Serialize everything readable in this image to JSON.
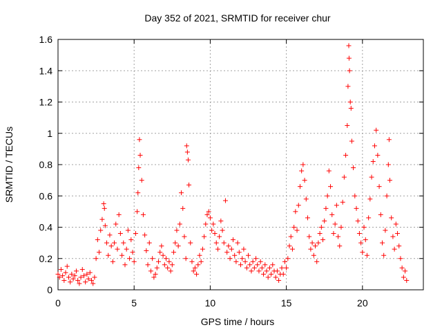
{
  "chart_data": {
    "type": "scatter",
    "title": "Day 352 of 2021, SRMTID for receiver chur",
    "xlabel": "GPS time / hours",
    "ylabel": "SRMTID / TECUs",
    "xlim": [
      0,
      24
    ],
    "ylim": [
      0,
      1.6
    ],
    "x_ticks": [
      0,
      5,
      10,
      15,
      20
    ],
    "x_tick_labels": [
      "0",
      "5",
      "10",
      "15",
      "20"
    ],
    "y_ticks": [
      0,
      0.2,
      0.4,
      0.6,
      0.8,
      1.0,
      1.2,
      1.4,
      1.6
    ],
    "y_tick_labels": [
      "0",
      "0.2",
      "0.4",
      "0.6",
      "0.8",
      "1",
      "1.2",
      "1.4",
      "1.6"
    ],
    "grid": true,
    "marker": "plus",
    "marker_color": "#ff0000",
    "series": [
      {
        "name": "SRMTID",
        "points": [
          [
            0.0,
            0.1
          ],
          [
            0.1,
            0.08
          ],
          [
            0.2,
            0.13
          ],
          [
            0.3,
            0.09
          ],
          [
            0.4,
            0.06
          ],
          [
            0.5,
            0.11
          ],
          [
            0.6,
            0.15
          ],
          [
            0.7,
            0.08
          ],
          [
            0.8,
            0.05
          ],
          [
            0.9,
            0.1
          ],
          [
            1.0,
            0.07
          ],
          [
            1.1,
            0.09
          ],
          [
            1.2,
            0.12
          ],
          [
            1.3,
            0.06
          ],
          [
            1.4,
            0.04
          ],
          [
            1.5,
            0.08
          ],
          [
            1.6,
            0.13
          ],
          [
            1.7,
            0.09
          ],
          [
            1.8,
            0.05
          ],
          [
            1.9,
            0.1
          ],
          [
            2.0,
            0.07
          ],
          [
            2.1,
            0.11
          ],
          [
            2.2,
            0.06
          ],
          [
            2.3,
            0.04
          ],
          [
            2.4,
            0.08
          ],
          [
            2.5,
            0.2
          ],
          [
            2.6,
            0.32
          ],
          [
            2.7,
            0.24
          ],
          [
            2.8,
            0.38
          ],
          [
            2.9,
            0.45
          ],
          [
            3.0,
            0.55
          ],
          [
            3.05,
            0.52
          ],
          [
            3.1,
            0.41
          ],
          [
            3.2,
            0.3
          ],
          [
            3.3,
            0.22
          ],
          [
            3.4,
            0.35
          ],
          [
            3.5,
            0.28
          ],
          [
            3.6,
            0.18
          ],
          [
            3.7,
            0.3
          ],
          [
            3.8,
            0.42
          ],
          [
            3.9,
            0.26
          ],
          [
            4.0,
            0.48
          ],
          [
            4.1,
            0.36
          ],
          [
            4.2,
            0.22
          ],
          [
            4.3,
            0.3
          ],
          [
            4.4,
            0.16
          ],
          [
            4.5,
            0.26
          ],
          [
            4.6,
            0.38
          ],
          [
            4.7,
            0.2
          ],
          [
            4.8,
            0.32
          ],
          [
            4.9,
            0.24
          ],
          [
            5.0,
            0.18
          ],
          [
            5.1,
            0.36
          ],
          [
            5.2,
            0.5
          ],
          [
            5.25,
            0.62
          ],
          [
            5.3,
            0.78
          ],
          [
            5.35,
            0.96
          ],
          [
            5.4,
            0.86
          ],
          [
            5.5,
            0.7
          ],
          [
            5.6,
            0.48
          ],
          [
            5.7,
            0.35
          ],
          [
            5.8,
            0.25
          ],
          [
            5.9,
            0.16
          ],
          [
            6.0,
            0.3
          ],
          [
            6.1,
            0.12
          ],
          [
            6.2,
            0.2
          ],
          [
            6.3,
            0.08
          ],
          [
            6.4,
            0.1
          ],
          [
            6.5,
            0.14
          ],
          [
            6.6,
            0.18
          ],
          [
            6.7,
            0.24
          ],
          [
            6.8,
            0.28
          ],
          [
            6.9,
            0.22
          ],
          [
            7.0,
            0.16
          ],
          [
            7.1,
            0.2
          ],
          [
            7.2,
            0.14
          ],
          [
            7.3,
            0.18
          ],
          [
            7.4,
            0.12
          ],
          [
            7.5,
            0.16
          ],
          [
            7.6,
            0.24
          ],
          [
            7.7,
            0.3
          ],
          [
            7.8,
            0.38
          ],
          [
            7.9,
            0.28
          ],
          [
            8.0,
            0.42
          ],
          [
            8.1,
            0.62
          ],
          [
            8.2,
            0.52
          ],
          [
            8.3,
            0.34
          ],
          [
            8.4,
            0.2
          ],
          [
            8.45,
            0.92
          ],
          [
            8.5,
            0.88
          ],
          [
            8.55,
            0.83
          ],
          [
            8.6,
            0.67
          ],
          [
            8.7,
            0.3
          ],
          [
            8.8,
            0.18
          ],
          [
            8.9,
            0.12
          ],
          [
            9.0,
            0.14
          ],
          [
            9.1,
            0.1
          ],
          [
            9.2,
            0.16
          ],
          [
            9.3,
            0.22
          ],
          [
            9.4,
            0.18
          ],
          [
            9.5,
            0.26
          ],
          [
            9.6,
            0.34
          ],
          [
            9.7,
            0.42
          ],
          [
            9.8,
            0.48
          ],
          [
            9.9,
            0.5
          ],
          [
            10.0,
            0.46
          ],
          [
            10.1,
            0.38
          ],
          [
            10.2,
            0.42
          ],
          [
            10.3,
            0.36
          ],
          [
            10.4,
            0.3
          ],
          [
            10.5,
            0.26
          ],
          [
            10.6,
            0.34
          ],
          [
            10.7,
            0.44
          ],
          [
            10.8,
            0.38
          ],
          [
            10.9,
            0.3
          ],
          [
            11.0,
            0.57
          ],
          [
            11.1,
            0.24
          ],
          [
            11.2,
            0.28
          ],
          [
            11.3,
            0.2
          ],
          [
            11.4,
            0.26
          ],
          [
            11.5,
            0.32
          ],
          [
            11.6,
            0.22
          ],
          [
            11.7,
            0.18
          ],
          [
            11.8,
            0.3
          ],
          [
            11.9,
            0.24
          ],
          [
            12.0,
            0.16
          ],
          [
            12.1,
            0.2
          ],
          [
            12.2,
            0.26
          ],
          [
            12.3,
            0.18
          ],
          [
            12.4,
            0.14
          ],
          [
            12.5,
            0.22
          ],
          [
            12.6,
            0.16
          ],
          [
            12.7,
            0.12
          ],
          [
            12.8,
            0.18
          ],
          [
            12.9,
            0.14
          ],
          [
            13.0,
            0.2
          ],
          [
            13.1,
            0.16
          ],
          [
            13.2,
            0.12
          ],
          [
            13.3,
            0.18
          ],
          [
            13.4,
            0.14
          ],
          [
            13.5,
            0.1
          ],
          [
            13.6,
            0.16
          ],
          [
            13.7,
            0.12
          ],
          [
            13.8,
            0.08
          ],
          [
            13.9,
            0.14
          ],
          [
            14.0,
            0.1
          ],
          [
            14.1,
            0.16
          ],
          [
            14.2,
            0.12
          ],
          [
            14.3,
            0.08
          ],
          [
            14.4,
            0.12
          ],
          [
            14.5,
            0.06
          ],
          [
            14.6,
            0.1
          ],
          [
            14.7,
            0.14
          ],
          [
            14.8,
            0.1
          ],
          [
            14.9,
            0.18
          ],
          [
            15.0,
            0.14
          ],
          [
            15.1,
            0.2
          ],
          [
            15.2,
            0.28
          ],
          [
            15.3,
            0.34
          ],
          [
            15.4,
            0.26
          ],
          [
            15.5,
            0.4
          ],
          [
            15.6,
            0.5
          ],
          [
            15.7,
            0.38
          ],
          [
            15.8,
            0.54
          ],
          [
            15.9,
            0.66
          ],
          [
            16.0,
            0.76
          ],
          [
            16.1,
            0.8
          ],
          [
            16.2,
            0.7
          ],
          [
            16.3,
            0.58
          ],
          [
            16.4,
            0.46
          ],
          [
            16.5,
            0.34
          ],
          [
            16.6,
            0.26
          ],
          [
            16.7,
            0.3
          ],
          [
            16.8,
            0.22
          ],
          [
            16.9,
            0.28
          ],
          [
            17.0,
            0.18
          ],
          [
            17.1,
            0.3
          ],
          [
            17.2,
            0.36
          ],
          [
            17.3,
            0.4
          ],
          [
            17.4,
            0.32
          ],
          [
            17.5,
            0.44
          ],
          [
            17.6,
            0.52
          ],
          [
            17.7,
            0.6
          ],
          [
            17.8,
            0.76
          ],
          [
            17.9,
            0.66
          ],
          [
            18.0,
            0.48
          ],
          [
            18.1,
            0.36
          ],
          [
            18.2,
            0.42
          ],
          [
            18.3,
            0.54
          ],
          [
            18.4,
            0.34
          ],
          [
            18.5,
            0.28
          ],
          [
            18.6,
            0.4
          ],
          [
            18.7,
            0.56
          ],
          [
            18.8,
            0.72
          ],
          [
            18.9,
            0.86
          ],
          [
            19.0,
            1.05
          ],
          [
            19.05,
            1.3
          ],
          [
            19.1,
            1.56
          ],
          [
            19.12,
            1.48
          ],
          [
            19.15,
            1.4
          ],
          [
            19.2,
            1.2
          ],
          [
            19.25,
            1.16
          ],
          [
            19.3,
            0.95
          ],
          [
            19.4,
            0.78
          ],
          [
            19.5,
            0.6
          ],
          [
            19.6,
            0.52
          ],
          [
            19.7,
            0.44
          ],
          [
            19.8,
            0.36
          ],
          [
            19.9,
            0.3
          ],
          [
            20.0,
            0.24
          ],
          [
            20.1,
            0.4
          ],
          [
            20.2,
            0.32
          ],
          [
            20.3,
            0.22
          ],
          [
            20.4,
            0.46
          ],
          [
            20.5,
            0.58
          ],
          [
            20.6,
            0.72
          ],
          [
            20.7,
            0.82
          ],
          [
            20.8,
            0.92
          ],
          [
            20.9,
            1.02
          ],
          [
            21.0,
            0.86
          ],
          [
            21.1,
            0.66
          ],
          [
            21.2,
            0.48
          ],
          [
            21.3,
            0.3
          ],
          [
            21.4,
            0.22
          ],
          [
            21.5,
            0.38
          ],
          [
            21.6,
            0.6
          ],
          [
            21.7,
            0.8
          ],
          [
            21.75,
            0.96
          ],
          [
            21.8,
            0.7
          ],
          [
            21.9,
            0.46
          ],
          [
            22.0,
            0.34
          ],
          [
            22.1,
            0.26
          ],
          [
            22.2,
            0.42
          ],
          [
            22.3,
            0.36
          ],
          [
            22.4,
            0.28
          ],
          [
            22.5,
            0.2
          ],
          [
            22.6,
            0.14
          ],
          [
            22.7,
            0.08
          ],
          [
            22.8,
            0.12
          ],
          [
            22.9,
            0.06
          ]
        ]
      }
    ]
  }
}
